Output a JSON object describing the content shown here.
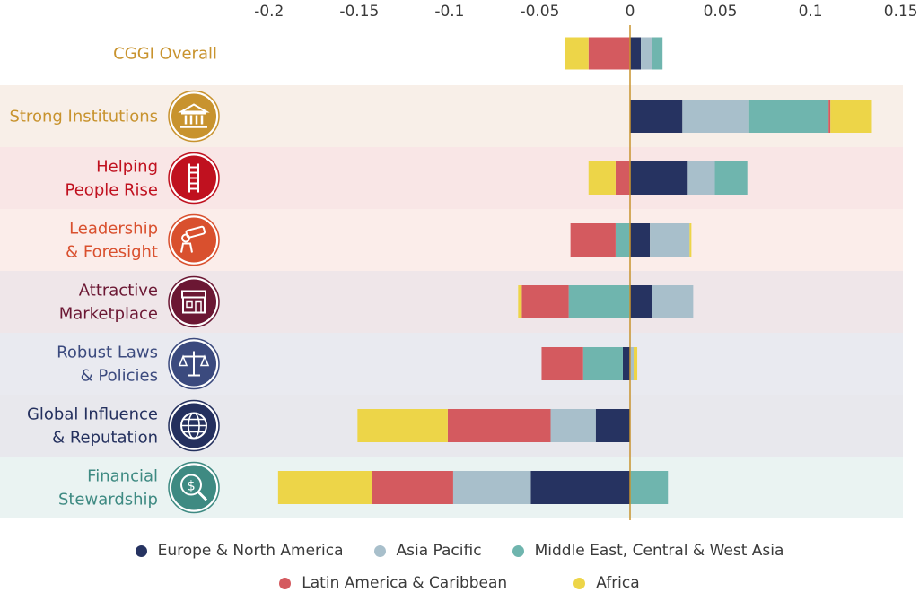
{
  "chart_data": {
    "type": "bar",
    "orientation": "horizontal",
    "stacked": true,
    "diverging": true,
    "xlim": [
      -0.2,
      0.15
    ],
    "xticks": [
      -0.2,
      -0.15,
      -0.1,
      -0.05,
      0,
      0.05,
      0.1,
      0.15
    ],
    "xtick_labels": [
      "-0.2",
      "-0.15",
      "-0.1",
      "-0.05",
      "0",
      "0.05",
      "0.1",
      "0.15"
    ],
    "axis_position": "top",
    "grid": false,
    "legend_position": "bottom",
    "categories": [
      {
        "label": "CGGI Overall",
        "lines": [
          "CGGI Overall"
        ],
        "color": "#C8932E",
        "band": null,
        "icon": null
      },
      {
        "label": "Strong Institutions",
        "lines": [
          "Strong Institutions"
        ],
        "color": "#C8932E",
        "band": "#F8EFE8",
        "icon": "institution-icon"
      },
      {
        "label": "Helping People Rise",
        "lines": [
          "Helping",
          "People Rise"
        ],
        "color": "#C0111F",
        "band": "#F9E6E6",
        "icon": "ladder-icon"
      },
      {
        "label": "Leadership & Foresight",
        "lines": [
          "Leadership",
          "& Foresight"
        ],
        "color": "#D9502E",
        "band": "#FBEDEA",
        "icon": "telescope-icon"
      },
      {
        "label": "Attractive Marketplace",
        "lines": [
          "Attractive",
          "Marketplace"
        ],
        "color": "#6B1733",
        "band": "#EFE6E9",
        "icon": "storefront-icon"
      },
      {
        "label": "Robust Laws & Policies",
        "lines": [
          "Robust Laws",
          "& Policies"
        ],
        "color": "#3B4A7E",
        "band": "#E9EAF0",
        "icon": "scales-icon"
      },
      {
        "label": "Global Influence & Reputation",
        "lines": [
          "Global Influence",
          "& Reputation"
        ],
        "color": "#24305E",
        "band": "#E8E8ED",
        "icon": "globe-icon"
      },
      {
        "label": "Financial Stewardship",
        "lines": [
          "Financial",
          "Stewardship"
        ],
        "color": "#3E8A82",
        "band": "#EAF3F2",
        "icon": "money-search-icon"
      }
    ],
    "series": [
      {
        "name": "Europe & North America",
        "color": "#263361",
        "values": [
          0.006,
          0.029,
          0.032,
          0.011,
          0.012,
          -0.004,
          -0.019,
          -0.055
        ]
      },
      {
        "name": "Asia Pacific",
        "color": "#A8BFCB",
        "values": [
          0.006,
          0.037,
          0.015,
          0.022,
          0.023,
          0.002,
          -0.025,
          -0.043
        ]
      },
      {
        "name": "Middle East, Central & West Asia",
        "color": "#6FB5AE",
        "values": [
          0.006,
          0.044,
          0.018,
          -0.008,
          -0.034,
          -0.022,
          0,
          0.021
        ]
      },
      {
        "name": "Latin America & Caribbean",
        "color": "#D45A5F",
        "values": [
          -0.023,
          0.001,
          -0.008,
          -0.025,
          -0.026,
          -0.023,
          -0.057,
          -0.045
        ]
      },
      {
        "name": "Africa",
        "color": "#EDD548",
        "values": [
          -0.013,
          0.023,
          -0.015,
          0.001,
          -0.002,
          0.002,
          -0.05,
          -0.052
        ]
      }
    ]
  },
  "legend": {
    "row1": [
      "Europe & North America",
      "Asia Pacific",
      "Middle East, Central & West Asia"
    ],
    "row2": [
      "Latin America & Caribbean",
      "Africa"
    ]
  }
}
